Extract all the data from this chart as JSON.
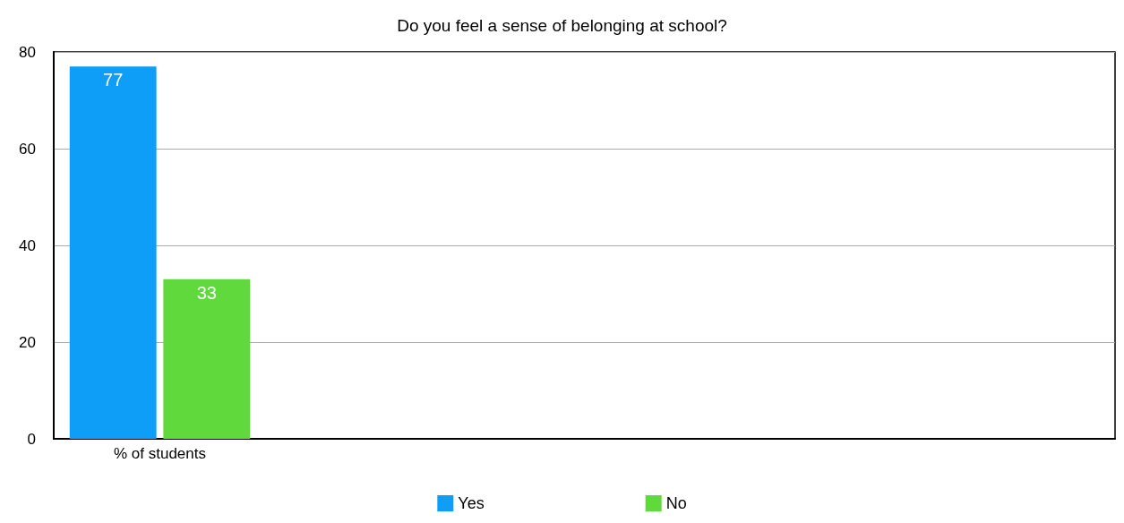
{
  "chart_data": {
    "type": "bar",
    "title": "Do you feel a sense of belonging at school?",
    "categories": [
      "% of students",
      null,
      null,
      null,
      null
    ],
    "series": [
      {
        "name": "Yes",
        "color": "#0f9ef7",
        "values": [
          77,
          null,
          null,
          null,
          null
        ]
      },
      {
        "name": "No",
        "color": "#5fd93b",
        "values": [
          33,
          null,
          null,
          null,
          null
        ]
      }
    ],
    "ylim": [
      0,
      80
    ],
    "yticks": [
      0,
      20,
      40,
      60,
      80
    ],
    "grid": "y",
    "legend": "bottom",
    "data_labels": true
  }
}
